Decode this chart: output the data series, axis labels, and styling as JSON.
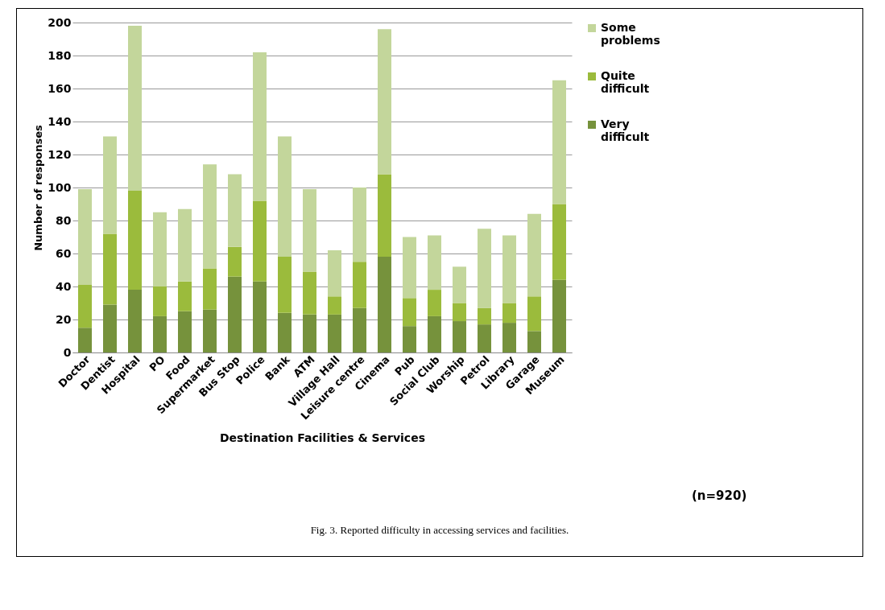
{
  "chart_data": {
    "type": "bar",
    "stacked": true,
    "xlabel": "Destination Facilities & Services",
    "ylabel": "Number of responses",
    "categories": [
      "Doctor",
      "Dentist",
      "Hospital",
      "PO",
      "Food",
      "Supermarket",
      "Bus Stop",
      "Police",
      "Bank",
      "ATM",
      "Village Hall",
      "Leisure centre",
      "Cinema",
      "Pub",
      "Social Club",
      "Worship",
      "Petrol",
      "Library",
      "Garage",
      "Museum"
    ],
    "series": [
      {
        "name": "Very difficult",
        "color": "#76923c",
        "values": [
          15,
          29,
          38,
          22,
          25,
          26,
          46,
          43,
          24,
          23,
          23,
          27,
          58,
          16,
          22,
          19,
          17,
          18,
          13,
          44
        ]
      },
      {
        "name": "Quite difficult",
        "color": "#9bbb3c",
        "values": [
          26,
          43,
          60,
          18,
          18,
          25,
          18,
          49,
          34,
          26,
          11,
          28,
          50,
          17,
          16,
          11,
          10,
          12,
          21,
          46
        ]
      },
      {
        "name": "Some problems",
        "color": "#c3d69b",
        "values": [
          58,
          59,
          100,
          45,
          44,
          63,
          44,
          90,
          73,
          50,
          28,
          45,
          88,
          37,
          33,
          22,
          48,
          41,
          50,
          75
        ]
      }
    ],
    "ylim": [
      0,
      200
    ],
    "yticks": [
      0,
      20,
      40,
      60,
      80,
      100,
      120,
      140,
      160,
      180,
      200
    ],
    "grid": "y",
    "legend": "right",
    "annotations": [
      "(n=920)",
      "Fig. 3. Reported difficulty in accessing services and facilities."
    ]
  }
}
